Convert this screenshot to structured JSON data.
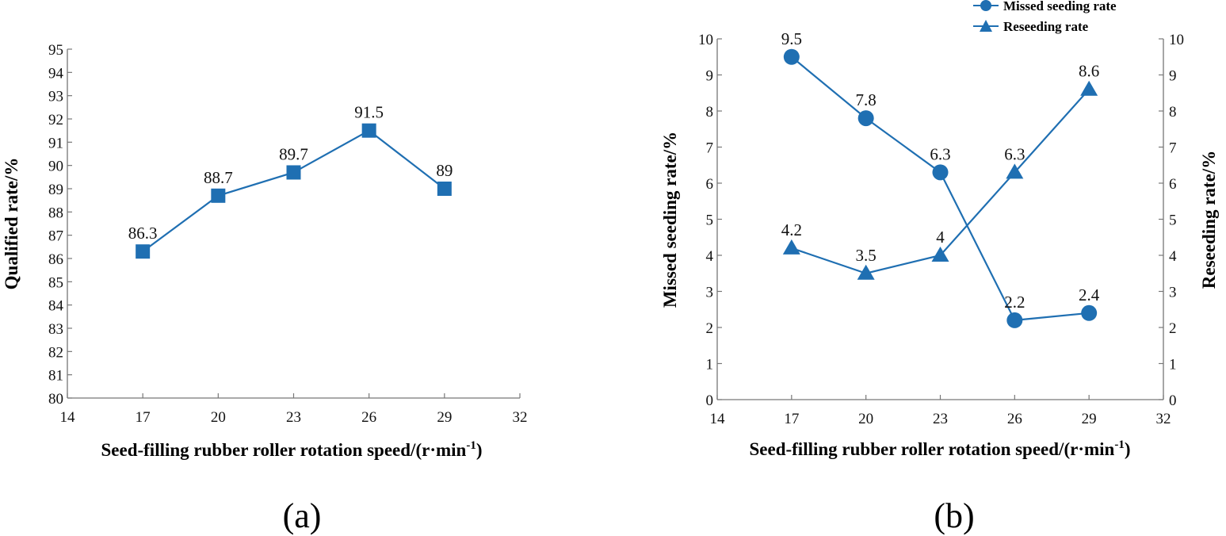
{
  "colors": {
    "series": "#1f6fb2",
    "axis": "#777777",
    "text": "#111111"
  },
  "chart_data": [
    {
      "id": "a",
      "type": "line",
      "caption": "(a)",
      "xlabel": "Seed-filling rubber roller rotation speed/(r·min",
      "xlabel_sup": "-1",
      "xlabel_close": ")",
      "ylabel": "Qualified rate/%",
      "xlim": [
        14,
        32
      ],
      "xticks": [
        "14",
        "17",
        "20",
        "23",
        "26",
        "29",
        "32"
      ],
      "ylim": [
        80,
        95
      ],
      "yticks": [
        "80",
        "81",
        "82",
        "83",
        "84",
        "85",
        "86",
        "87",
        "88",
        "89",
        "90",
        "91",
        "92",
        "93",
        "94",
        "95"
      ],
      "grid": false,
      "series": [
        {
          "name": "Qualified rate",
          "marker": "square",
          "x": [
            17,
            20,
            23,
            26,
            29
          ],
          "values": [
            86.3,
            88.7,
            89.7,
            91.5,
            89
          ],
          "labels": [
            "86.3",
            "88.7",
            "89.7",
            "91.5",
            "89"
          ]
        }
      ]
    },
    {
      "id": "b",
      "type": "line",
      "caption": "(b)",
      "xlabel": "Seed-filling rubber roller rotation speed/(r·min",
      "xlabel_sup": "-1",
      "xlabel_close": ")",
      "ylabel": "Missed seeding rate/%",
      "ylabel_right": "Reseeding rate/%",
      "xlim": [
        14,
        32
      ],
      "xticks": [
        "14",
        "17",
        "20",
        "23",
        "26",
        "29",
        "32"
      ],
      "ylim": [
        0,
        10
      ],
      "yticks": [
        "0",
        "1",
        "2",
        "3",
        "4",
        "5",
        "6",
        "7",
        "8",
        "9",
        "10"
      ],
      "ylim_right": [
        0,
        10
      ],
      "yticks_right": [
        "0",
        "1",
        "2",
        "3",
        "4",
        "5",
        "6",
        "7",
        "8",
        "9",
        "10"
      ],
      "grid": false,
      "legend_position": "top-right",
      "series": [
        {
          "name": "Missed seeding rate",
          "marker": "circle",
          "x": [
            17,
            20,
            23,
            26,
            29
          ],
          "values": [
            9.5,
            7.8,
            6.3,
            2.2,
            2.4
          ],
          "labels": [
            "9.5",
            "7.8",
            "6.3",
            "2.2",
            "2.4"
          ]
        },
        {
          "name": "Reseeding rate",
          "marker": "triangle",
          "x": [
            17,
            20,
            23,
            26,
            29
          ],
          "values": [
            4.2,
            3.5,
            4,
            6.3,
            8.6
          ],
          "labels": [
            "4.2",
            "3.5",
            "4",
            "6.3",
            "8.6"
          ]
        }
      ]
    }
  ]
}
